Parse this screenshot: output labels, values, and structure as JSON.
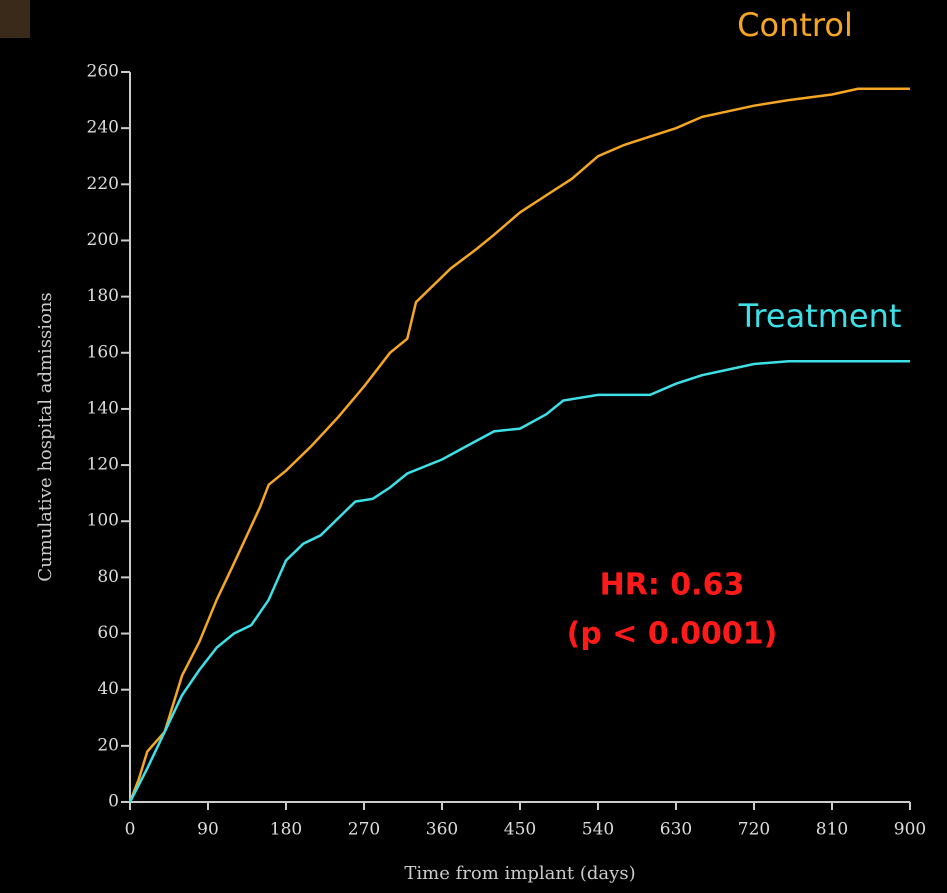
{
  "chart_data": {
    "type": "line",
    "x_label": "Time from implant (days)",
    "y_label": "Cumulative hospital admissions",
    "xlim": [
      0,
      900
    ],
    "xticks": [
      0,
      90,
      180,
      270,
      360,
      450,
      540,
      630,
      720,
      810,
      900
    ],
    "ylim": [
      0,
      260
    ],
    "yticks": [
      0,
      20,
      40,
      60,
      80,
      100,
      120,
      140,
      160,
      180,
      200,
      220,
      240,
      260
    ],
    "series": [
      {
        "name": "Control",
        "color": "#f5a623",
        "x": [
          0,
          10,
          20,
          40,
          60,
          80,
          100,
          120,
          150,
          160,
          180,
          210,
          240,
          270,
          300,
          320,
          330,
          350,
          370,
          400,
          420,
          450,
          480,
          510,
          540,
          570,
          600,
          630,
          660,
          690,
          720,
          760,
          810,
          840,
          900
        ],
        "values": [
          0,
          8,
          18,
          25,
          45,
          57,
          72,
          85,
          105,
          113,
          118,
          127,
          137,
          148,
          160,
          165,
          178,
          184,
          190,
          197,
          202,
          210,
          216,
          222,
          230,
          234,
          237,
          240,
          244,
          246,
          248,
          250,
          252,
          254,
          254
        ]
      },
      {
        "name": "Treatment",
        "color": "#3ee0e8",
        "x": [
          0,
          20,
          40,
          60,
          80,
          100,
          120,
          140,
          160,
          180,
          200,
          220,
          240,
          260,
          280,
          300,
          320,
          360,
          390,
          420,
          450,
          480,
          500,
          540,
          600,
          630,
          660,
          690,
          720,
          760,
          810,
          900
        ],
        "values": [
          0,
          12,
          25,
          38,
          47,
          55,
          60,
          63,
          72,
          86,
          92,
          95,
          101,
          107,
          108,
          112,
          117,
          122,
          127,
          132,
          133,
          138,
          143,
          145,
          145,
          149,
          152,
          154,
          156,
          157,
          157,
          157
        ]
      }
    ],
    "annotations": [
      "HR: 0.63",
      "(p < 0.0001)"
    ]
  }
}
